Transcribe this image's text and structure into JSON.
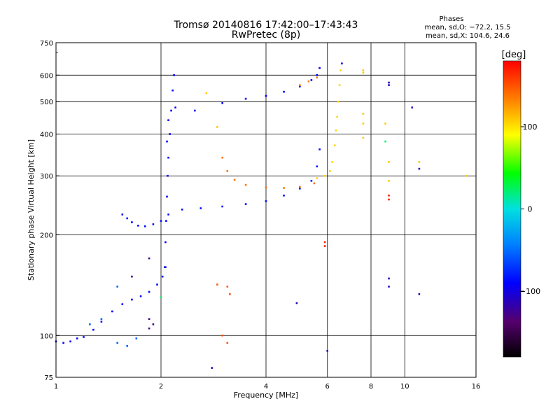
{
  "chart_data": {
    "type": "scatter",
    "title": "Tromsø 20140816 17:42:00–17:43:43",
    "subtitle": "RwPretec (8p)",
    "xlabel": "Frequency [MHz]",
    "ylabel": "Stationary phase Virtual Height [km]",
    "xscale": "log",
    "yscale": "log",
    "xlim": [
      1,
      16
    ],
    "ylim": [
      75,
      750
    ],
    "x_ticks": [
      1,
      2,
      4,
      6,
      8,
      10,
      16
    ],
    "y_ticks": [
      75,
      100,
      200,
      300,
      400,
      500,
      600,
      750
    ],
    "stats": {
      "heading": "Phases",
      "line_o": "mean, sd,O: −72.2, 15.5",
      "line_x": "mean, sd,X: 104.6, 24.6"
    },
    "colorbar": {
      "label": "[deg]",
      "range": [
        -180,
        180
      ],
      "ticks": [
        -100,
        0,
        100
      ],
      "colormap": "rainbow"
    },
    "series": [
      {
        "name": "O-trace low layer",
        "phase": -88,
        "points": [
          [
            1.0,
            96
          ],
          [
            1.05,
            95
          ],
          [
            1.1,
            96
          ],
          [
            1.15,
            98
          ],
          [
            1.2,
            99
          ],
          [
            1.28,
            104
          ],
          [
            1.35,
            110
          ],
          [
            1.45,
            118
          ],
          [
            1.55,
            124
          ],
          [
            1.65,
            128
          ],
          [
            1.75,
            131
          ],
          [
            1.85,
            135
          ],
          [
            1.95,
            142
          ],
          [
            2.02,
            150
          ],
          [
            2.06,
            160
          ]
        ]
      },
      {
        "name": "O-trace mid layer",
        "phase": -85,
        "points": [
          [
            1.55,
            230
          ],
          [
            1.6,
            224
          ],
          [
            1.65,
            218
          ],
          [
            1.72,
            213
          ],
          [
            1.8,
            212
          ],
          [
            1.9,
            215
          ],
          [
            2.0,
            220
          ],
          [
            2.1,
            230
          ],
          [
            2.3,
            238
          ],
          [
            2.6,
            240
          ],
          [
            3.0,
            243
          ],
          [
            3.5,
            247
          ],
          [
            4.0,
            252
          ],
          [
            4.5,
            262
          ],
          [
            5.0,
            275
          ],
          [
            5.4,
            290
          ],
          [
            5.6,
            320
          ],
          [
            5.7,
            360
          ]
        ]
      },
      {
        "name": "O-trace F2 upper",
        "phase": -90,
        "points": [
          [
            2.08,
            380
          ],
          [
            2.1,
            440
          ],
          [
            2.2,
            480
          ],
          [
            2.5,
            470
          ],
          [
            3.0,
            495
          ],
          [
            3.5,
            510
          ],
          [
            4.0,
            520
          ],
          [
            4.5,
            535
          ],
          [
            5.0,
            555
          ],
          [
            5.4,
            580
          ],
          [
            5.6,
            600
          ],
          [
            5.7,
            630
          ]
        ]
      },
      {
        "name": "O-trace vertical near 2 MHz",
        "phase": -92,
        "points": [
          [
            2.05,
            160
          ],
          [
            2.06,
            190
          ],
          [
            2.07,
            220
          ],
          [
            2.08,
            260
          ],
          [
            2.09,
            300
          ],
          [
            2.1,
            340
          ],
          [
            2.12,
            400
          ],
          [
            2.14,
            470
          ],
          [
            2.16,
            540
          ],
          [
            2.18,
            600
          ]
        ]
      },
      {
        "name": "X-trace cusp",
        "phase": 140,
        "points": [
          [
            3.0,
            340
          ],
          [
            3.1,
            310
          ],
          [
            3.25,
            292
          ],
          [
            3.5,
            282
          ],
          [
            4.0,
            277
          ],
          [
            4.5,
            276
          ],
          [
            5.0,
            278
          ],
          [
            5.5,
            285
          ]
        ]
      },
      {
        "name": "X-trace yellow",
        "phase": 105,
        "points": [
          [
            5.6,
            295
          ],
          [
            5.9,
            300
          ],
          [
            6.1,
            310
          ],
          [
            6.2,
            330
          ],
          [
            6.3,
            370
          ],
          [
            6.35,
            410
          ],
          [
            6.4,
            450
          ],
          [
            6.45,
            500
          ],
          [
            6.5,
            560
          ],
          [
            6.55,
            620
          ]
        ]
      },
      {
        "name": "X-trace upper orange",
        "phase": 135,
        "points": [
          [
            5.0,
            560
          ],
          [
            5.3,
            575
          ],
          [
            5.6,
            590
          ]
        ]
      },
      {
        "name": "Scattered low cyan",
        "phase": -55,
        "points": [
          [
            1.25,
            108
          ],
          [
            1.35,
            112
          ],
          [
            1.5,
            95
          ],
          [
            1.6,
            93
          ],
          [
            1.7,
            98
          ],
          [
            1.5,
            140
          ]
        ]
      },
      {
        "name": "Scattered low purple",
        "phase": -125,
        "points": [
          [
            1.85,
            105
          ],
          [
            1.85,
            112
          ],
          [
            1.9,
            108
          ],
          [
            1.65,
            150
          ],
          [
            1.85,
            170
          ]
        ]
      },
      {
        "name": "Isolated orange",
        "phase": 150,
        "points": [
          [
            2.9,
            142
          ],
          [
            3.1,
            140
          ],
          [
            3.15,
            133
          ],
          [
            3.1,
            95
          ],
          [
            3.0,
            100
          ]
        ]
      },
      {
        "name": "Isolated red",
        "phase": 170,
        "points": [
          [
            5.9,
            190
          ],
          [
            5.9,
            185
          ],
          [
            9.0,
            262
          ],
          [
            9.0,
            255
          ]
        ]
      },
      {
        "name": "Isolated blue high freq",
        "phase": -110,
        "points": [
          [
            9.0,
            570
          ],
          [
            9.0,
            560
          ],
          [
            9.0,
            148
          ],
          [
            9.0,
            140
          ],
          [
            10.5,
            480
          ],
          [
            11.0,
            315
          ],
          [
            11.0,
            133
          ],
          [
            6.0,
            90
          ],
          [
            2.8,
            80
          ],
          [
            4.9,
            125
          ],
          [
            6.6,
            650
          ]
        ]
      },
      {
        "name": "Isolated yellow high freq",
        "phase": 110,
        "points": [
          [
            7.6,
            620
          ],
          [
            7.6,
            610
          ],
          [
            7.6,
            460
          ],
          [
            7.6,
            430
          ],
          [
            7.6,
            390
          ],
          [
            8.8,
            430
          ],
          [
            9.0,
            330
          ],
          [
            9.0,
            290
          ],
          [
            11.0,
            330
          ],
          [
            15.0,
            300
          ],
          [
            2.9,
            420
          ],
          [
            2.7,
            530
          ]
        ]
      },
      {
        "name": "Isolated green",
        "phase": 25,
        "points": [
          [
            8.8,
            380
          ],
          [
            2.0,
            130
          ]
        ]
      }
    ]
  }
}
